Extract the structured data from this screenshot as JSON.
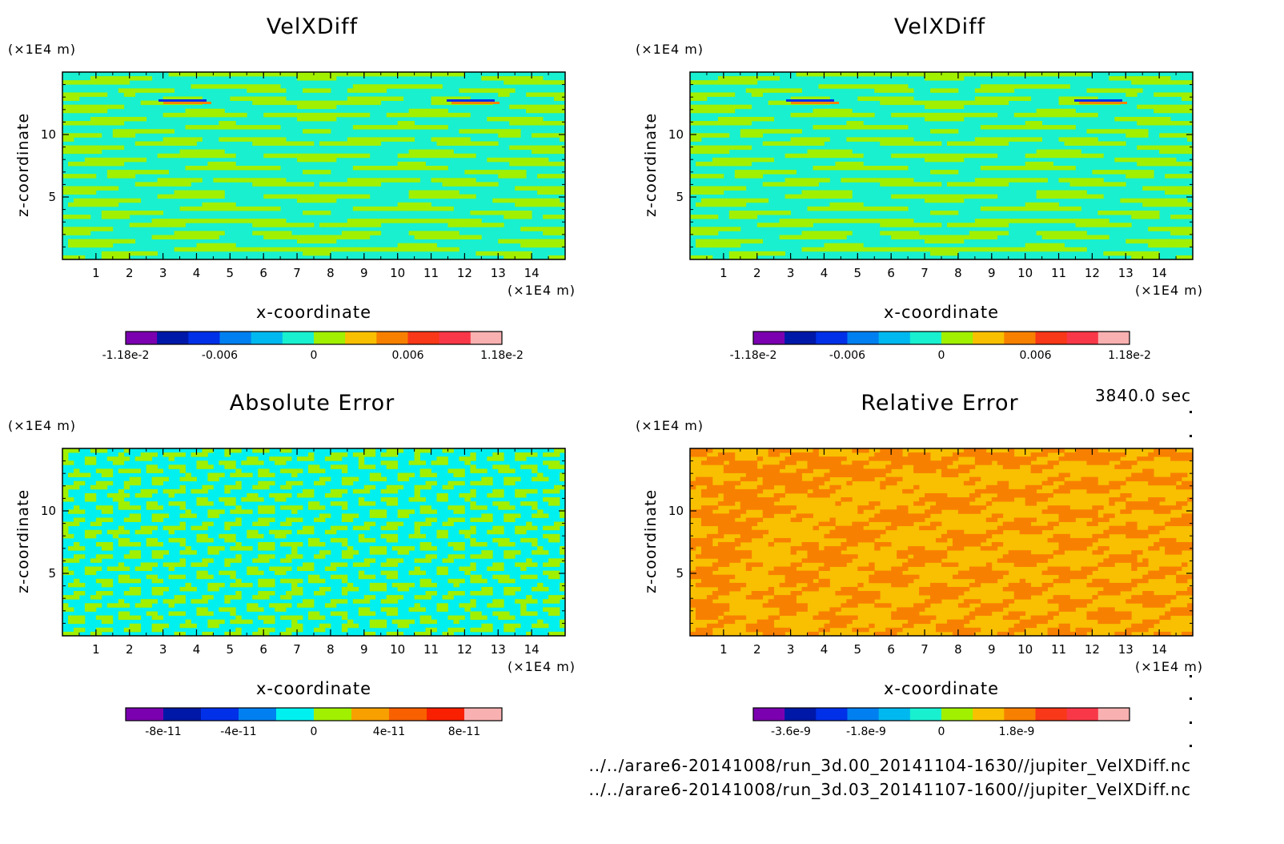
{
  "chart_data": [
    {
      "type": "heatmap",
      "title": "VelXDiff",
      "xlabel": "x-coordinate",
      "ylabel": "z-coordinate",
      "x_unit": "(×1E4 m)",
      "y_unit": "(×1E4 m)",
      "xlim": [
        0,
        15
      ],
      "ylim": [
        0,
        15
      ],
      "x_ticks": [
        "1",
        "2",
        "3",
        "4",
        "5",
        "6",
        "7",
        "8",
        "9",
        "10",
        "11",
        "12",
        "13",
        "14"
      ],
      "y_ticks": [
        "5",
        "10"
      ],
      "colorbar": {
        "colors": [
          "#7b00b0",
          "#0018a8",
          "#0030e8",
          "#0080f0",
          "#00b8f0",
          "#18f0d0",
          "#a0f000",
          "#f8c000",
          "#f88000",
          "#f83818",
          "#f83848",
          "#f8b0b0"
        ],
        "tick_labels": [
          "-1.18e-2",
          "-0.006",
          "0",
          "0.006",
          "1.18e-2"
        ]
      },
      "dominant_colors": [
        "#18f0d0",
        "#a0f000"
      ],
      "accent_colors": [
        "#0030e8",
        "#f88000"
      ]
    },
    {
      "type": "heatmap",
      "title": "VelXDiff",
      "xlabel": "x-coordinate",
      "ylabel": "z-coordinate",
      "x_unit": "(×1E4 m)",
      "y_unit": "(×1E4 m)",
      "xlim": [
        0,
        15
      ],
      "ylim": [
        0,
        15
      ],
      "x_ticks": [
        "1",
        "2",
        "3",
        "4",
        "5",
        "6",
        "7",
        "8",
        "9",
        "10",
        "11",
        "12",
        "13",
        "14"
      ],
      "y_ticks": [
        "5",
        "10"
      ],
      "colorbar": {
        "colors": [
          "#7b00b0",
          "#0018a8",
          "#0030e8",
          "#0080f0",
          "#00b8f0",
          "#18f0d0",
          "#a0f000",
          "#f8c000",
          "#f88000",
          "#f83818",
          "#f83848",
          "#f8b0b0"
        ],
        "tick_labels": [
          "-1.18e-2",
          "-0.006",
          "0",
          "0.006",
          "1.18e-2"
        ]
      },
      "dominant_colors": [
        "#18f0d0",
        "#a0f000"
      ],
      "accent_colors": [
        "#0030e8",
        "#f88000"
      ]
    },
    {
      "type": "heatmap",
      "title": "Absolute Error",
      "xlabel": "x-coordinate",
      "ylabel": "z-coordinate",
      "x_unit": "(×1E4 m)",
      "y_unit": "(×1E4 m)",
      "xlim": [
        0,
        15
      ],
      "ylim": [
        0,
        15
      ],
      "x_ticks": [
        "1",
        "2",
        "3",
        "4",
        "5",
        "6",
        "7",
        "8",
        "9",
        "10",
        "11",
        "12",
        "13",
        "14"
      ],
      "y_ticks": [
        "5",
        "10"
      ],
      "colorbar": {
        "colors": [
          "#7b00b0",
          "#0018a8",
          "#0030e8",
          "#0080f0",
          "#00f0f0",
          "#a0f000",
          "#f8a000",
          "#f86000",
          "#f82000",
          "#f8b0b0"
        ],
        "tick_labels": [
          "-8e-11",
          "-4e-11",
          "0",
          "4e-11",
          "8e-11"
        ]
      },
      "dominant_colors": [
        "#00f0f0",
        "#a0f000"
      ],
      "accent_colors": []
    },
    {
      "type": "heatmap",
      "title": "Relative Error",
      "xlabel": "x-coordinate",
      "ylabel": "z-coordinate",
      "x_unit": "(×1E4 m)",
      "y_unit": "(×1E4 m)",
      "xlim": [
        0,
        15
      ],
      "ylim": [
        0,
        15
      ],
      "x_ticks": [
        "1",
        "2",
        "3",
        "4",
        "5",
        "6",
        "7",
        "8",
        "9",
        "10",
        "11",
        "12",
        "13",
        "14"
      ],
      "y_ticks": [
        "5",
        "10"
      ],
      "colorbar": {
        "colors": [
          "#7b00b0",
          "#0018a8",
          "#0030e8",
          "#0080f0",
          "#00b8f0",
          "#18f0d0",
          "#a0f000",
          "#f8c000",
          "#f88000",
          "#f83818",
          "#f83848",
          "#f8b0b0"
        ],
        "tick_labels": [
          "-3.6e-9",
          "-1.8e-9",
          "0",
          "1.8e-9"
        ]
      },
      "dominant_colors": [
        "#f8c000",
        "#f88000"
      ],
      "accent_colors": []
    }
  ],
  "footer": {
    "time": "3840.0 sec",
    "path1": "../../arare6-20141008/run_3d.00_20141104-1630//jupiter_VelXDiff.nc",
    "path2": "../../arare6-20141008/run_3d.03_20141107-1600//jupiter_VelXDiff.nc"
  }
}
